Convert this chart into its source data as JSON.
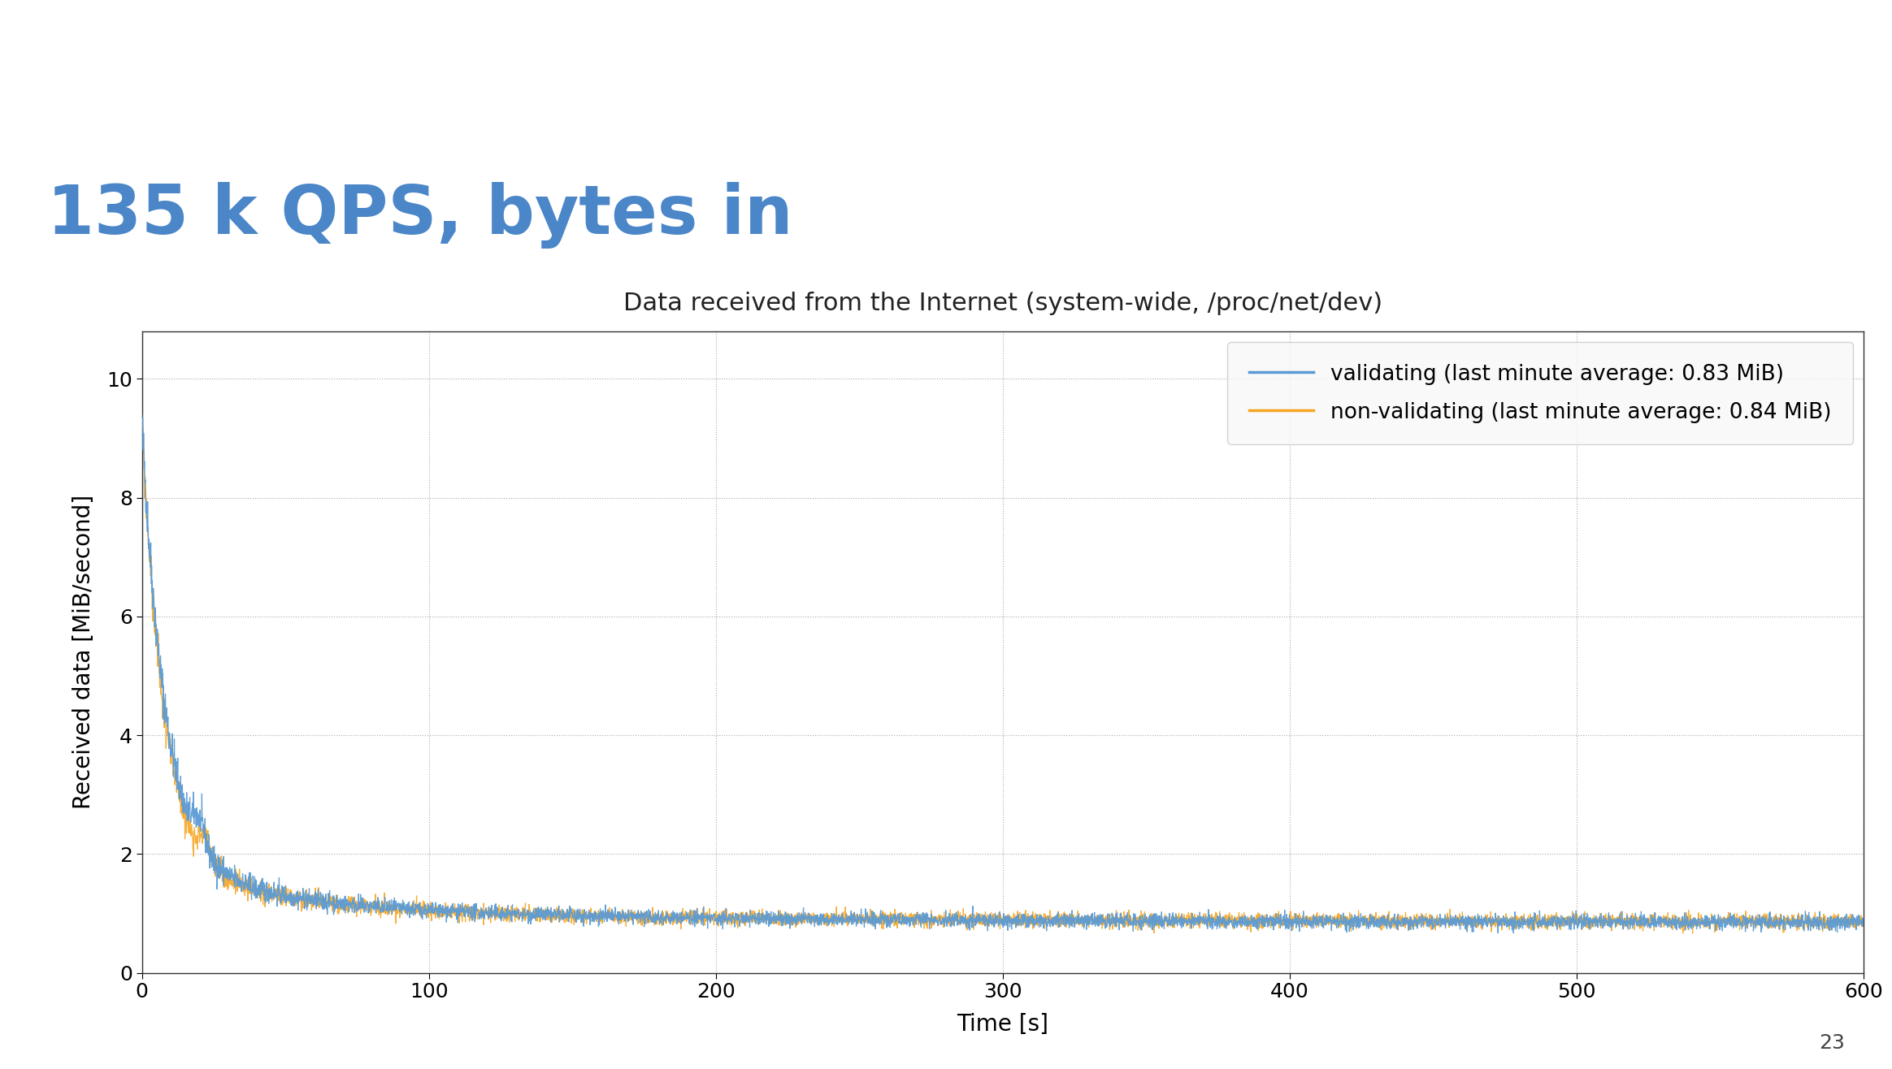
{
  "title": "135 k QPS, bytes in",
  "subtitle": "Data received from the Internet (system-wide, /proc/net/dev)",
  "xlabel": "Time [s]",
  "ylabel": "Received data [MiB/second]",
  "title_color": "#4a86c8",
  "title_fontsize": 60,
  "subtitle_fontsize": 22,
  "axis_label_fontsize": 20,
  "tick_fontsize": 18,
  "legend_fontsize": 19,
  "xlim": [
    0,
    600
  ],
  "ylim": [
    0,
    10.8
  ],
  "yticks": [
    0,
    2,
    4,
    6,
    8,
    10
  ],
  "xticks": [
    0,
    100,
    200,
    300,
    400,
    500,
    600
  ],
  "legend_validating": "validating (last minute average: 0.83 MiB)",
  "legend_nonvalidating": "non-validating (last minute average: 0.84 MiB)",
  "color_validating": "#5b9bd5",
  "color_nonvalidating": "#f5a623",
  "background_color": "#ffffff",
  "header_bar_color": "#4a86c8",
  "page_number": "23",
  "seed_validating": 42,
  "seed_nonvalidating": 99
}
